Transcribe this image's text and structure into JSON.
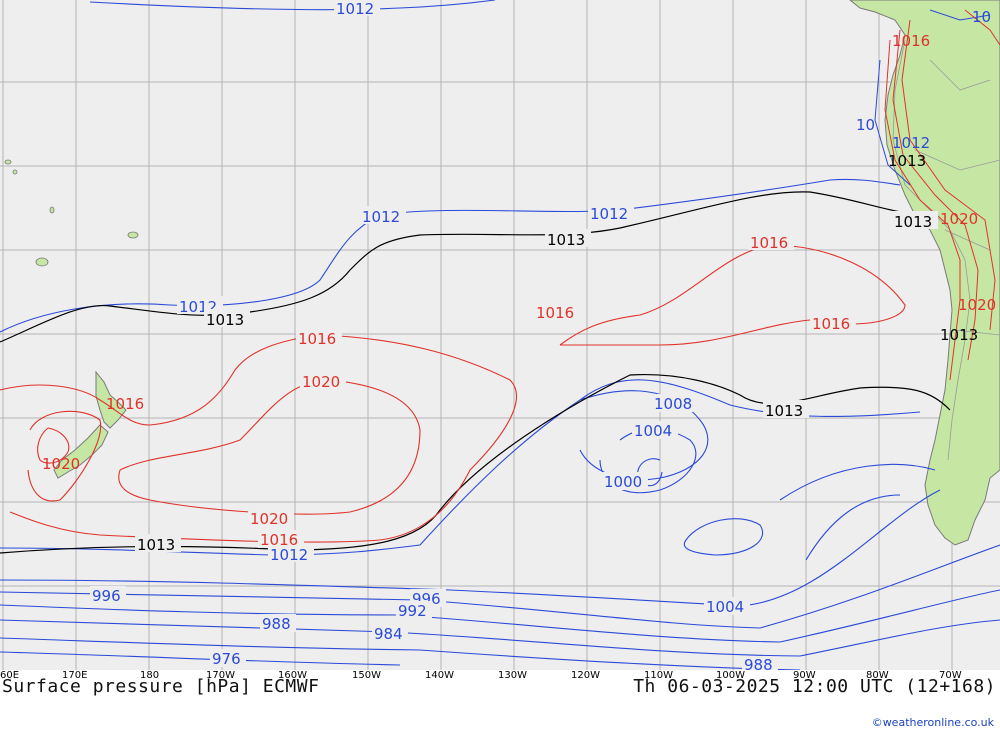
{
  "title": "Surface pressure [hPa] ECMWF",
  "valid_time": "Th 06-03-2025 12:00 UTC (12+168)",
  "credit": "©weatheronline.co.uk",
  "colors": {
    "ocean": "#eeeeee",
    "land": "#c6e7a4",
    "grid": "#b4b4b4",
    "isobar_low": "#2b4ad8",
    "isobar_high": "#e0322a",
    "isobar_1013": "#000000"
  },
  "longitude_labels": [
    "60E",
    "170E",
    "180",
    "170W",
    "160W",
    "150W",
    "140W",
    "130W",
    "120W",
    "110W",
    "100W",
    "90W",
    "80W",
    "70W"
  ],
  "isobar_labels": {
    "l1012a": "1012",
    "l1012b": "1012",
    "l1012c": "1012",
    "l1012d": "1012",
    "l1012e": "1012",
    "l1012f": "1012",
    "l1012g": "10",
    "l1013a": "1013",
    "l1013b": "1013",
    "l1013c": "1013",
    "l1013d": "1013",
    "l1013e": "1013",
    "l1013f": "1013",
    "l1013g": "1013",
    "l1016a": "1016",
    "l1016b": "1016",
    "l1016c": "1016",
    "l1016d": "1016",
    "l1016e": "1016",
    "l1016f": "1016",
    "l1016g": "1016",
    "l1020a": "1020",
    "l1020b": "1020",
    "l1020c": "1020",
    "l1020d": "1020",
    "l1020e": "1020",
    "l1008": "1008",
    "l1004a": "1004",
    "l1004b": "1004",
    "l1000": "1000",
    "l996a": "996",
    "l996b": "996",
    "l992": "992",
    "l988a": "988",
    "l988b": "988",
    "l984": "984",
    "l976": "976",
    "l10ne": "10"
  }
}
